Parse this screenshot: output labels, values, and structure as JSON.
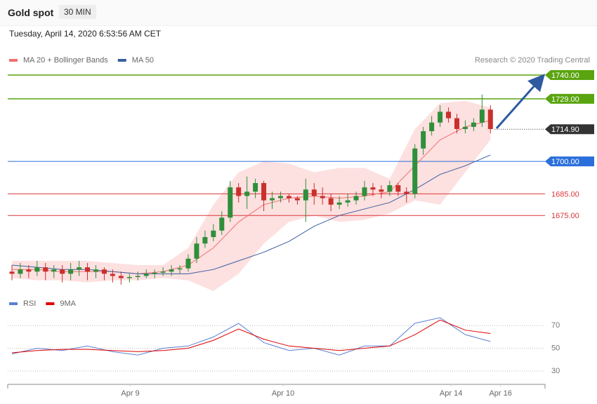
{
  "header": {
    "title": "Gold spot",
    "interval": "30 MIN",
    "timestamp": "Tuesday, April 14, 2020 6:53:56 AM CET",
    "credit": "Research © 2020 Trading Central"
  },
  "chart_data": {
    "type": "candlestick",
    "xlim": [
      0,
      64
    ],
    "ylim": [
      1640,
      1752
    ],
    "xticks": [
      {
        "value": 14.6,
        "label": "Apr 9"
      },
      {
        "value": 32.8,
        "label": "Apr 10"
      },
      {
        "value": 52.8,
        "label": "Apr 14"
      },
      {
        "value": 58.7,
        "label": "Apr 16"
      }
    ],
    "up_color": "#2f8f3a",
    "down_color": "#c9302c",
    "open": [
      1649,
      1648,
      1650,
      1649,
      1651,
      1649,
      1650,
      1648,
      1650,
      1651,
      1649,
      1650,
      1648,
      1647,
      1646,
      1646.5,
      1647,
      1648,
      1648.5,
      1649,
      1650,
      1650.5,
      1655,
      1662,
      1665,
      1668,
      1674,
      1688,
      1684,
      1686,
      1690,
      1682,
      1683,
      1684,
      1683,
      1682,
      1687,
      1684,
      1683,
      1680,
      1681,
      1682,
      1684,
      1688,
      1687,
      1686,
      1689,
      1686,
      1685,
      1706,
      1714,
      1718,
      1723,
      1720,
      1715,
      1716,
      1718,
      1724
    ],
    "high": [
      1652,
      1653,
      1652,
      1654,
      1653,
      1652,
      1652,
      1653,
      1654,
      1653,
      1652,
      1651,
      1650,
      1649,
      1648,
      1649,
      1650,
      1650,
      1651,
      1652,
      1652,
      1657,
      1665,
      1668,
      1671,
      1677,
      1691,
      1690,
      1693,
      1692,
      1691,
      1686,
      1686,
      1685,
      1684,
      1692,
      1690,
      1688,
      1685,
      1684,
      1685,
      1686,
      1691,
      1690,
      1689,
      1691,
      1690,
      1688,
      1708,
      1716,
      1721,
      1726,
      1725,
      1722,
      1719,
      1720,
      1731,
      1726
    ],
    "low": [
      1645,
      1646,
      1646,
      1647,
      1645,
      1646,
      1644,
      1645,
      1647,
      1645,
      1646,
      1645,
      1644,
      1643,
      1644,
      1645,
      1646,
      1646,
      1647,
      1647,
      1648,
      1649,
      1653,
      1660,
      1663,
      1666,
      1672,
      1681,
      1678,
      1683,
      1677,
      1678,
      1681,
      1681,
      1680,
      1672,
      1680,
      1680,
      1677,
      1678,
      1679,
      1680,
      1682,
      1684,
      1683,
      1684,
      1684,
      1681,
      1683,
      1703,
      1712,
      1716,
      1718,
      1713,
      1713,
      1714,
      1716,
      1713
    ],
    "close": [
      1648,
      1650,
      1649,
      1651,
      1649,
      1650,
      1648,
      1650,
      1651,
      1649,
      1650,
      1648,
      1647,
      1646,
      1646.5,
      1647,
      1648,
      1648.5,
      1649,
      1650,
      1650.5,
      1655,
      1662,
      1665,
      1668,
      1674,
      1688,
      1684,
      1686,
      1690,
      1682,
      1683,
      1684,
      1683,
      1682,
      1687,
      1684,
      1683,
      1680,
      1681,
      1682,
      1684,
      1688,
      1687,
      1686,
      1689,
      1686,
      1685,
      1706,
      1714,
      1718,
      1723,
      1720,
      1715,
      1716,
      1718,
      1724,
      1715
    ],
    "overlay_x": [
      0.5,
      3.5,
      6.5,
      9.5,
      12.5,
      15.5,
      18.5,
      21.5,
      24.5,
      27.5,
      30.5,
      33.5,
      36.5,
      39.5,
      42.5,
      45.5,
      48.5,
      51.5,
      54.5,
      57.5
    ],
    "overlays": [
      {
        "name": "MA 20 + Bollinger Bands",
        "color": "#f07070",
        "band_color": "#fde0e0",
        "values": [
          1650,
          1650,
          1649,
          1649,
          1649,
          1648,
          1649,
          1652,
          1660,
          1672,
          1680,
          1683,
          1684,
          1683,
          1684,
          1686,
          1698,
          1710,
          1716,
          1719
        ],
        "upper": [
          1654,
          1654,
          1654,
          1654,
          1653,
          1652,
          1652,
          1660,
          1680,
          1695,
          1700,
          1699,
          1695,
          1697,
          1697,
          1692,
          1715,
          1727,
          1728,
          1725
        ],
        "lower": [
          1646,
          1645,
          1645,
          1644,
          1645,
          1645,
          1646,
          1645,
          1640,
          1648,
          1662,
          1672,
          1675,
          1672,
          1673,
          1676,
          1682,
          1680,
          1695,
          1710
        ]
      },
      {
        "name": "MA 50",
        "color": "#3a5fa0",
        "values": [
          1652,
          1651,
          1650,
          1650,
          1649,
          1648,
          1648,
          1648,
          1650,
          1654,
          1658,
          1663,
          1670,
          1675,
          1678,
          1681,
          1687,
          1694,
          1698,
          1703
        ]
      }
    ],
    "levels": [
      {
        "value": 1740,
        "label": "1740.00",
        "color": "#5aa40f",
        "style": "box",
        "line": "solid"
      },
      {
        "value": 1729,
        "label": "1729.00",
        "color": "#5aa40f",
        "style": "box",
        "line": "solid"
      },
      {
        "value": 1714.9,
        "label": "1714.90",
        "color": "#333333",
        "style": "box",
        "line": "dotted"
      },
      {
        "value": 1700,
        "label": "1700.00",
        "color": "#2a6fdb",
        "style": "box",
        "line": "solid"
      },
      {
        "value": 1685,
        "label": "1685.00",
        "color": "#d9383a",
        "style": "text",
        "line": "solid"
      },
      {
        "value": 1675,
        "label": "1675.00",
        "color": "#d9383a",
        "style": "text",
        "line": "solid"
      }
    ],
    "rsi": {
      "ylim": [
        20,
        85
      ],
      "yticks": [
        30,
        50,
        70
      ],
      "series": [
        {
          "name": "RSI",
          "color": "#5b7fd6",
          "values": [
            45,
            50,
            48,
            52,
            47,
            44,
            50,
            52,
            60,
            72,
            55,
            48,
            50,
            44,
            52,
            52,
            72,
            77,
            62,
            56
          ]
        },
        {
          "name": "9MA",
          "color": "#e00000",
          "values": [
            46,
            48,
            49,
            49,
            48,
            47,
            48,
            50,
            57,
            67,
            58,
            52,
            50,
            48,
            50,
            52,
            62,
            75,
            66,
            63
          ]
        }
      ]
    }
  }
}
